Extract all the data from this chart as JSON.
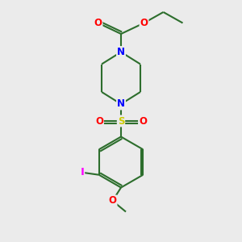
{
  "bg_color": "#ebebeb",
  "bond_color": "#2d6e2d",
  "bond_width": 1.5,
  "atom_colors": {
    "N": "#0000ff",
    "O": "#ff0000",
    "S": "#cccc00",
    "I": "#ff00ff",
    "C": "#2d6e2d"
  },
  "font_size_atom": 8.5,
  "fig_size": [
    3.0,
    3.0
  ],
  "dpi": 100
}
